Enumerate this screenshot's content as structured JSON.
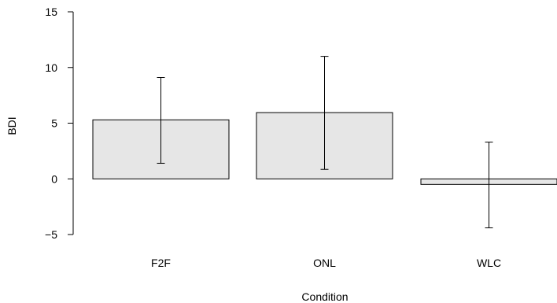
{
  "chart_data": {
    "type": "bar",
    "categories": [
      "F2F",
      "ONL",
      "WLC"
    ],
    "values": [
      5.3,
      5.95,
      -0.5
    ],
    "error_low": [
      1.4,
      0.85,
      -4.4
    ],
    "error_high": [
      9.1,
      11.0,
      3.3
    ],
    "xlabel": "Condition",
    "ylabel": "BDI",
    "ylim": [
      -5,
      15
    ],
    "yticks": [
      -5,
      0,
      5,
      10,
      15
    ],
    "ytick_labels": [
      "−5",
      "0",
      "5",
      "10",
      "15"
    ],
    "grid": false,
    "bar_color": "#e6e6e6",
    "edge_color": "#000000"
  }
}
